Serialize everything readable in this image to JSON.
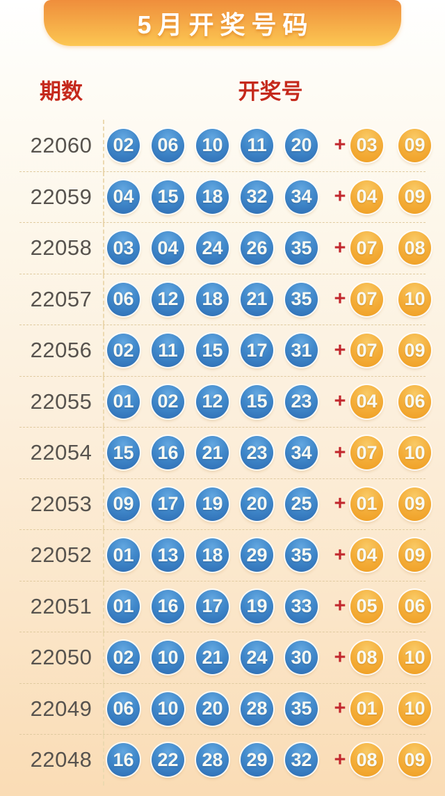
{
  "header": {
    "title": "5月开奖号码"
  },
  "table": {
    "columns": {
      "period": "期数",
      "numbers": "开奖号"
    },
    "plus_symbol": "+",
    "rows": [
      {
        "period": "22060",
        "front": [
          "02",
          "06",
          "10",
          "11",
          "20"
        ],
        "back": [
          "03",
          "09"
        ]
      },
      {
        "period": "22059",
        "front": [
          "04",
          "15",
          "18",
          "32",
          "34"
        ],
        "back": [
          "04",
          "09"
        ]
      },
      {
        "period": "22058",
        "front": [
          "03",
          "04",
          "24",
          "26",
          "35"
        ],
        "back": [
          "07",
          "08"
        ]
      },
      {
        "period": "22057",
        "front": [
          "06",
          "12",
          "18",
          "21",
          "35"
        ],
        "back": [
          "07",
          "10"
        ]
      },
      {
        "period": "22056",
        "front": [
          "02",
          "11",
          "15",
          "17",
          "31"
        ],
        "back": [
          "07",
          "09"
        ]
      },
      {
        "period": "22055",
        "front": [
          "01",
          "02",
          "12",
          "15",
          "23"
        ],
        "back": [
          "04",
          "06"
        ]
      },
      {
        "period": "22054",
        "front": [
          "15",
          "16",
          "21",
          "23",
          "34"
        ],
        "back": [
          "07",
          "10"
        ]
      },
      {
        "period": "22053",
        "front": [
          "09",
          "17",
          "19",
          "20",
          "25"
        ],
        "back": [
          "01",
          "09"
        ]
      },
      {
        "period": "22052",
        "front": [
          "01",
          "13",
          "18",
          "29",
          "35"
        ],
        "back": [
          "04",
          "09"
        ]
      },
      {
        "period": "22051",
        "front": [
          "01",
          "16",
          "17",
          "19",
          "33"
        ],
        "back": [
          "05",
          "06"
        ]
      },
      {
        "period": "22050",
        "front": [
          "02",
          "10",
          "21",
          "24",
          "30"
        ],
        "back": [
          "08",
          "10"
        ]
      },
      {
        "period": "22049",
        "front": [
          "06",
          "10",
          "20",
          "28",
          "35"
        ],
        "back": [
          "01",
          "10"
        ]
      },
      {
        "period": "22048",
        "front": [
          "16",
          "22",
          "28",
          "29",
          "32"
        ],
        "back": [
          "08",
          "09"
        ]
      }
    ]
  },
  "colors": {
    "banner_top": "#ef8e3c",
    "banner_bottom": "#fcc752",
    "header_text": "#c5291c",
    "period_text": "#57534e",
    "front_ball": "#2f6fb5",
    "back_ball": "#f0a238",
    "plus_sign": "#c2282e",
    "background_bottom": "#fadcb5"
  }
}
